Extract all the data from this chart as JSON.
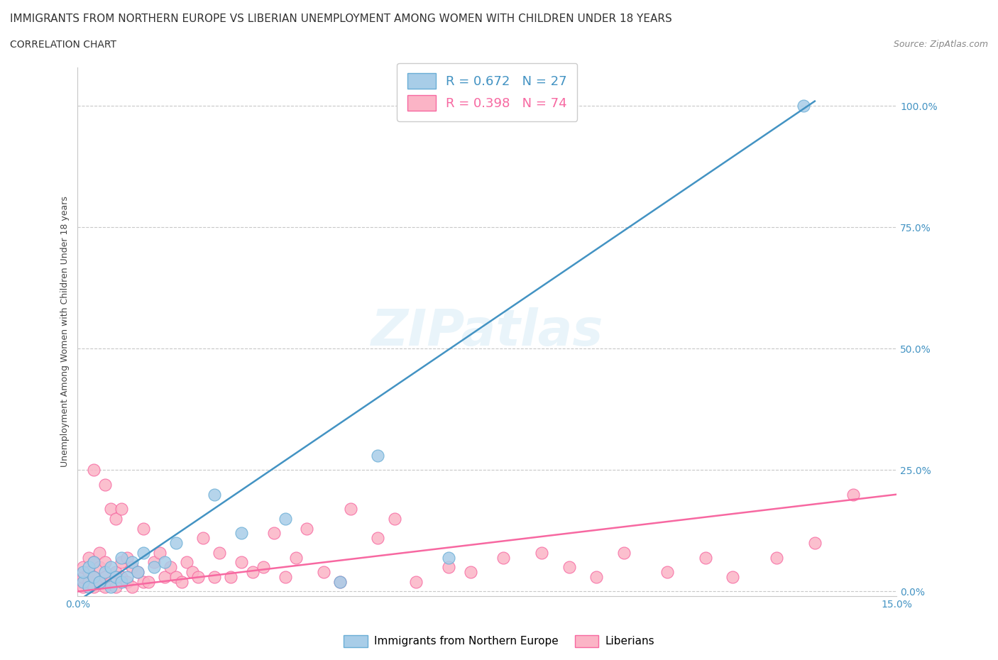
{
  "title": "IMMIGRANTS FROM NORTHERN EUROPE VS LIBERIAN UNEMPLOYMENT AMONG WOMEN WITH CHILDREN UNDER 18 YEARS",
  "subtitle": "CORRELATION CHART",
  "source": "Source: ZipAtlas.com",
  "ylabel": "Unemployment Among Women with Children Under 18 years",
  "watermark": "ZIPatlas",
  "xlim": [
    0.0,
    0.15
  ],
  "ylim": [
    -0.01,
    1.08
  ],
  "yticks": [
    0.0,
    0.25,
    0.5,
    0.75,
    1.0
  ],
  "ytick_labels": [
    "0.0%",
    "25.0%",
    "50.0%",
    "75.0%",
    "100.0%"
  ],
  "xticks": [
    0.0,
    0.15
  ],
  "xtick_labels": [
    "0.0%",
    "15.0%"
  ],
  "blue_R": 0.672,
  "blue_N": 27,
  "pink_R": 0.398,
  "pink_N": 74,
  "blue_color": "#a8cde8",
  "blue_edge_color": "#6aaed6",
  "pink_color": "#fbb4c6",
  "pink_edge_color": "#f768a1",
  "blue_line_color": "#4393c3",
  "pink_line_color": "#f768a1",
  "legend_label_blue": "Immigrants from Northern Europe",
  "legend_label_pink": "Liberians",
  "blue_line_x0": 0.0,
  "blue_line_y0": -0.02,
  "blue_line_x1": 0.135,
  "blue_line_y1": 1.01,
  "pink_line_x0": 0.0,
  "pink_line_y0": 0.0,
  "pink_line_x1": 0.15,
  "pink_line_y1": 0.2,
  "blue_scatter_x": [
    0.001,
    0.001,
    0.002,
    0.002,
    0.003,
    0.003,
    0.004,
    0.005,
    0.006,
    0.006,
    0.007,
    0.008,
    0.008,
    0.009,
    0.01,
    0.011,
    0.012,
    0.014,
    0.016,
    0.018,
    0.025,
    0.03,
    0.038,
    0.048,
    0.055,
    0.068,
    0.133
  ],
  "blue_scatter_y": [
    0.02,
    0.04,
    0.01,
    0.05,
    0.03,
    0.06,
    0.02,
    0.04,
    0.01,
    0.05,
    0.03,
    0.02,
    0.07,
    0.03,
    0.06,
    0.04,
    0.08,
    0.05,
    0.06,
    0.1,
    0.2,
    0.12,
    0.15,
    0.02,
    0.28,
    0.07,
    1.0
  ],
  "pink_scatter_x": [
    0.0005,
    0.001,
    0.001,
    0.001,
    0.002,
    0.002,
    0.002,
    0.002,
    0.003,
    0.003,
    0.003,
    0.003,
    0.004,
    0.004,
    0.004,
    0.005,
    0.005,
    0.005,
    0.005,
    0.006,
    0.006,
    0.007,
    0.007,
    0.007,
    0.008,
    0.008,
    0.008,
    0.009,
    0.009,
    0.01,
    0.01,
    0.011,
    0.012,
    0.012,
    0.013,
    0.014,
    0.015,
    0.016,
    0.017,
    0.018,
    0.019,
    0.02,
    0.021,
    0.022,
    0.023,
    0.025,
    0.026,
    0.028,
    0.03,
    0.032,
    0.034,
    0.036,
    0.038,
    0.04,
    0.042,
    0.045,
    0.048,
    0.05,
    0.055,
    0.058,
    0.062,
    0.068,
    0.072,
    0.078,
    0.085,
    0.09,
    0.095,
    0.1,
    0.108,
    0.115,
    0.12,
    0.128,
    0.135,
    0.142
  ],
  "pink_scatter_y": [
    0.02,
    0.01,
    0.03,
    0.05,
    0.01,
    0.04,
    0.07,
    0.02,
    0.01,
    0.03,
    0.06,
    0.25,
    0.02,
    0.05,
    0.08,
    0.01,
    0.03,
    0.06,
    0.22,
    0.02,
    0.17,
    0.01,
    0.04,
    0.15,
    0.03,
    0.06,
    0.17,
    0.02,
    0.07,
    0.01,
    0.05,
    0.04,
    0.02,
    0.13,
    0.02,
    0.06,
    0.08,
    0.03,
    0.05,
    0.03,
    0.02,
    0.06,
    0.04,
    0.03,
    0.11,
    0.03,
    0.08,
    0.03,
    0.06,
    0.04,
    0.05,
    0.12,
    0.03,
    0.07,
    0.13,
    0.04,
    0.02,
    0.17,
    0.11,
    0.15,
    0.02,
    0.05,
    0.04,
    0.07,
    0.08,
    0.05,
    0.03,
    0.08,
    0.04,
    0.07,
    0.03,
    0.07,
    0.1,
    0.2
  ],
  "background_color": "#ffffff",
  "grid_color": "#c8c8c8",
  "title_fontsize": 11,
  "subtitle_fontsize": 10,
  "source_fontsize": 9,
  "axis_label_fontsize": 9,
  "tick_fontsize": 10,
  "legend_fontsize": 13
}
